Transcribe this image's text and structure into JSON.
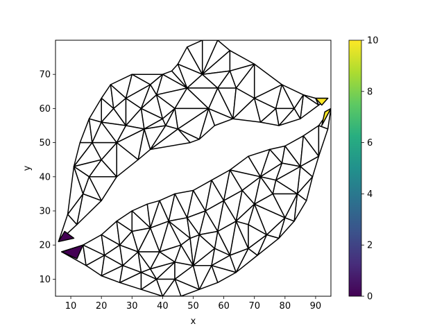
{
  "chart_data": {
    "type": "triangulation",
    "xlabel": "x",
    "ylabel": "y",
    "xlim": [
      5,
      95
    ],
    "ylim": [
      5,
      80
    ],
    "xticks": [
      "10",
      "20",
      "30",
      "40",
      "50",
      "60",
      "70",
      "80",
      "90"
    ],
    "yticks": [
      "10",
      "20",
      "30",
      "40",
      "50",
      "60",
      "70"
    ],
    "colorbar": {
      "colormap": "viridis",
      "range": [
        0,
        10
      ],
      "ticks": [
        "0",
        "2",
        "4",
        "6",
        "8",
        "10"
      ]
    },
    "edge_color": "#000000",
    "upper_lip": [
      [
        6,
        21
      ],
      [
        9,
        29
      ],
      [
        11,
        43
      ],
      [
        13,
        50
      ],
      [
        16,
        57
      ],
      [
        20,
        63
      ],
      [
        23,
        67
      ],
      [
        30,
        70
      ],
      [
        40,
        70
      ],
      [
        43,
        71
      ],
      [
        45,
        73
      ],
      [
        48,
        78
      ],
      [
        53,
        80
      ],
      [
        58,
        80
      ],
      [
        62,
        77
      ],
      [
        70,
        73
      ],
      [
        79,
        67
      ],
      [
        86,
        64
      ],
      [
        90,
        63
      ],
      [
        94,
        63
      ],
      [
        91,
        61
      ],
      [
        85,
        57
      ],
      [
        78,
        55
      ],
      [
        72,
        56
      ],
      [
        63,
        57
      ],
      [
        57,
        55
      ],
      [
        52,
        51
      ],
      [
        49,
        50
      ],
      [
        36,
        48
      ],
      [
        32,
        45
      ],
      [
        25,
        40
      ],
      [
        20,
        33
      ],
      [
        12,
        26
      ]
    ],
    "upper_lip_interior": [
      [
        17,
        50
      ],
      [
        20,
        56
      ],
      [
        24,
        60
      ],
      [
        28,
        63
      ],
      [
        33,
        60
      ],
      [
        38,
        64
      ],
      [
        44,
        60
      ],
      [
        48,
        66
      ],
      [
        53,
        70
      ],
      [
        58,
        66
      ],
      [
        64,
        66
      ],
      [
        70,
        63
      ],
      [
        77,
        60
      ],
      [
        83,
        60
      ],
      [
        28,
        55
      ],
      [
        34,
        54
      ],
      [
        40,
        57
      ],
      [
        16,
        40
      ],
      [
        20,
        45
      ],
      [
        14,
        35
      ],
      [
        25,
        50
      ],
      [
        45,
        54
      ],
      [
        55,
        60
      ],
      [
        62,
        71
      ],
      [
        36,
        67
      ],
      [
        41,
        55
      ]
    ],
    "lower_lip": [
      [
        7,
        18
      ],
      [
        14,
        20
      ],
      [
        20,
        23
      ],
      [
        25,
        27
      ],
      [
        30,
        30
      ],
      [
        35,
        32
      ],
      [
        39,
        33
      ],
      [
        44,
        35
      ],
      [
        50,
        36
      ],
      [
        56,
        39
      ],
      [
        62,
        42
      ],
      [
        68,
        46
      ],
      [
        75,
        48
      ],
      [
        80,
        49
      ],
      [
        86,
        52
      ],
      [
        91,
        55
      ],
      [
        95,
        60
      ],
      [
        94,
        54
      ],
      [
        91,
        46
      ],
      [
        89,
        40
      ],
      [
        87,
        33
      ],
      [
        83,
        27
      ],
      [
        78,
        22
      ],
      [
        71,
        17
      ],
      [
        64,
        12
      ],
      [
        58,
        9
      ],
      [
        52,
        7
      ],
      [
        46,
        5
      ],
      [
        40,
        5
      ],
      [
        33,
        7
      ],
      [
        26,
        9
      ],
      [
        20,
        11
      ],
      [
        15,
        14
      ]
    ],
    "lower_lip_interior": [
      [
        21,
        17
      ],
      [
        27,
        14
      ],
      [
        33,
        12
      ],
      [
        38,
        10
      ],
      [
        44,
        10
      ],
      [
        50,
        14
      ],
      [
        56,
        14
      ],
      [
        62,
        17
      ],
      [
        68,
        19
      ],
      [
        74,
        23
      ],
      [
        80,
        28
      ],
      [
        84,
        35
      ],
      [
        85,
        43
      ],
      [
        79,
        44
      ],
      [
        72,
        40
      ],
      [
        66,
        36
      ],
      [
        60,
        33
      ],
      [
        54,
        30
      ],
      [
        48,
        28
      ],
      [
        42,
        27
      ],
      [
        36,
        25
      ],
      [
        30,
        24
      ],
      [
        26,
        20
      ],
      [
        32,
        18
      ],
      [
        39,
        18
      ],
      [
        46,
        20
      ],
      [
        52,
        23
      ],
      [
        58,
        24
      ],
      [
        64,
        27
      ],
      [
        70,
        32
      ],
      [
        76,
        35
      ],
      [
        44,
        15
      ],
      [
        57,
        19
      ],
      [
        68,
        26
      ],
      [
        77,
        39
      ],
      [
        36,
        13
      ],
      [
        49,
        22
      ]
    ],
    "highlighted_faces": [
      {
        "vertices": [
          [
            6,
            21
          ],
          [
            8,
            24
          ],
          [
            11,
            22
          ]
        ],
        "value": 0.3
      },
      {
        "vertices": [
          [
            7,
            18
          ],
          [
            14,
            20
          ],
          [
            12,
            16
          ]
        ],
        "value": 0.3
      },
      {
        "vertices": [
          [
            90,
            63
          ],
          [
            94,
            63
          ],
          [
            92,
            61
          ]
        ],
        "value": 10
      },
      {
        "vertices": [
          [
            93,
            59
          ],
          [
            95,
            60
          ],
          [
            92,
            55
          ]
        ],
        "value": 10
      }
    ]
  }
}
